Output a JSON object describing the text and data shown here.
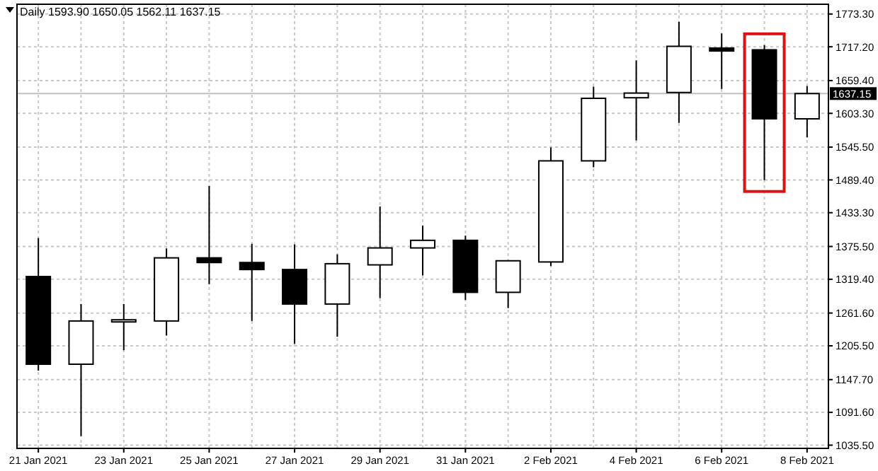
{
  "chart_data": {
    "type": "candlestick",
    "title": "Daily 1593.90 1650.05 1562.11 1637.15",
    "categories": [
      "21 Jan 2021",
      null,
      "23 Jan 2021",
      null,
      "25 Jan 2021",
      null,
      "27 Jan 2021",
      null,
      "29 Jan 2021",
      null,
      "31 Jan 2021",
      null,
      "2 Feb 2021",
      null,
      "4 Feb 2021",
      null,
      "6 Feb 2021",
      null,
      "8 Feb 2021"
    ],
    "ohlc": [
      [
        1324,
        1390,
        1163,
        1174
      ],
      [
        1174,
        1277,
        1051,
        1248
      ],
      [
        1247,
        1277,
        1198,
        1250
      ],
      [
        1248,
        1372,
        1223,
        1356
      ],
      [
        1356,
        1479,
        1311,
        1348
      ],
      [
        1348,
        1380,
        1248,
        1336
      ],
      [
        1336,
        1379,
        1209,
        1277
      ],
      [
        1277,
        1362,
        1221,
        1346
      ],
      [
        1344,
        1444,
        1287,
        1373
      ],
      [
        1373,
        1411,
        1326,
        1386
      ],
      [
        1386,
        1394,
        1284,
        1297
      ],
      [
        1297,
        1352,
        1270,
        1351
      ],
      [
        1349,
        1545,
        1342,
        1522
      ],
      [
        1522,
        1649,
        1511,
        1629
      ],
      [
        1630,
        1694,
        1557,
        1638
      ],
      [
        1639,
        1760,
        1587,
        1718
      ],
      [
        1715,
        1740,
        1645,
        1710
      ],
      [
        1712,
        1720,
        1489,
        1594
      ],
      [
        1593.9,
        1650.05,
        1562.11,
        1637.15
      ]
    ],
    "ylim": [
      1030,
      1790
    ],
    "yticks": [
      {
        "value": 1773.3,
        "label": "1773.30"
      },
      {
        "value": 1717.2,
        "label": "1717.20"
      },
      {
        "value": 1659.4,
        "label": "1659.40"
      },
      {
        "value": 1603.3,
        "label": "1603.30"
      },
      {
        "value": 1545.5,
        "label": "1545.50"
      },
      {
        "value": 1489.4,
        "label": "1489.40"
      },
      {
        "value": 1433.3,
        "label": "1433.30"
      },
      {
        "value": 1375.5,
        "label": "1375.50"
      },
      {
        "value": 1319.4,
        "label": "1319.40"
      },
      {
        "value": 1261.6,
        "label": "1261.60"
      },
      {
        "value": 1205.5,
        "label": "1205.50"
      },
      {
        "value": 1147.7,
        "label": "1147.70"
      },
      {
        "value": 1091.6,
        "label": "1091.60"
      },
      {
        "value": 1035.5,
        "label": "1035.50"
      }
    ],
    "ref_lines": [
      {
        "axis": "y",
        "value": 1637.15,
        "label": "1637.15",
        "color": "#c0c0c0"
      }
    ],
    "grid": true
  }
}
